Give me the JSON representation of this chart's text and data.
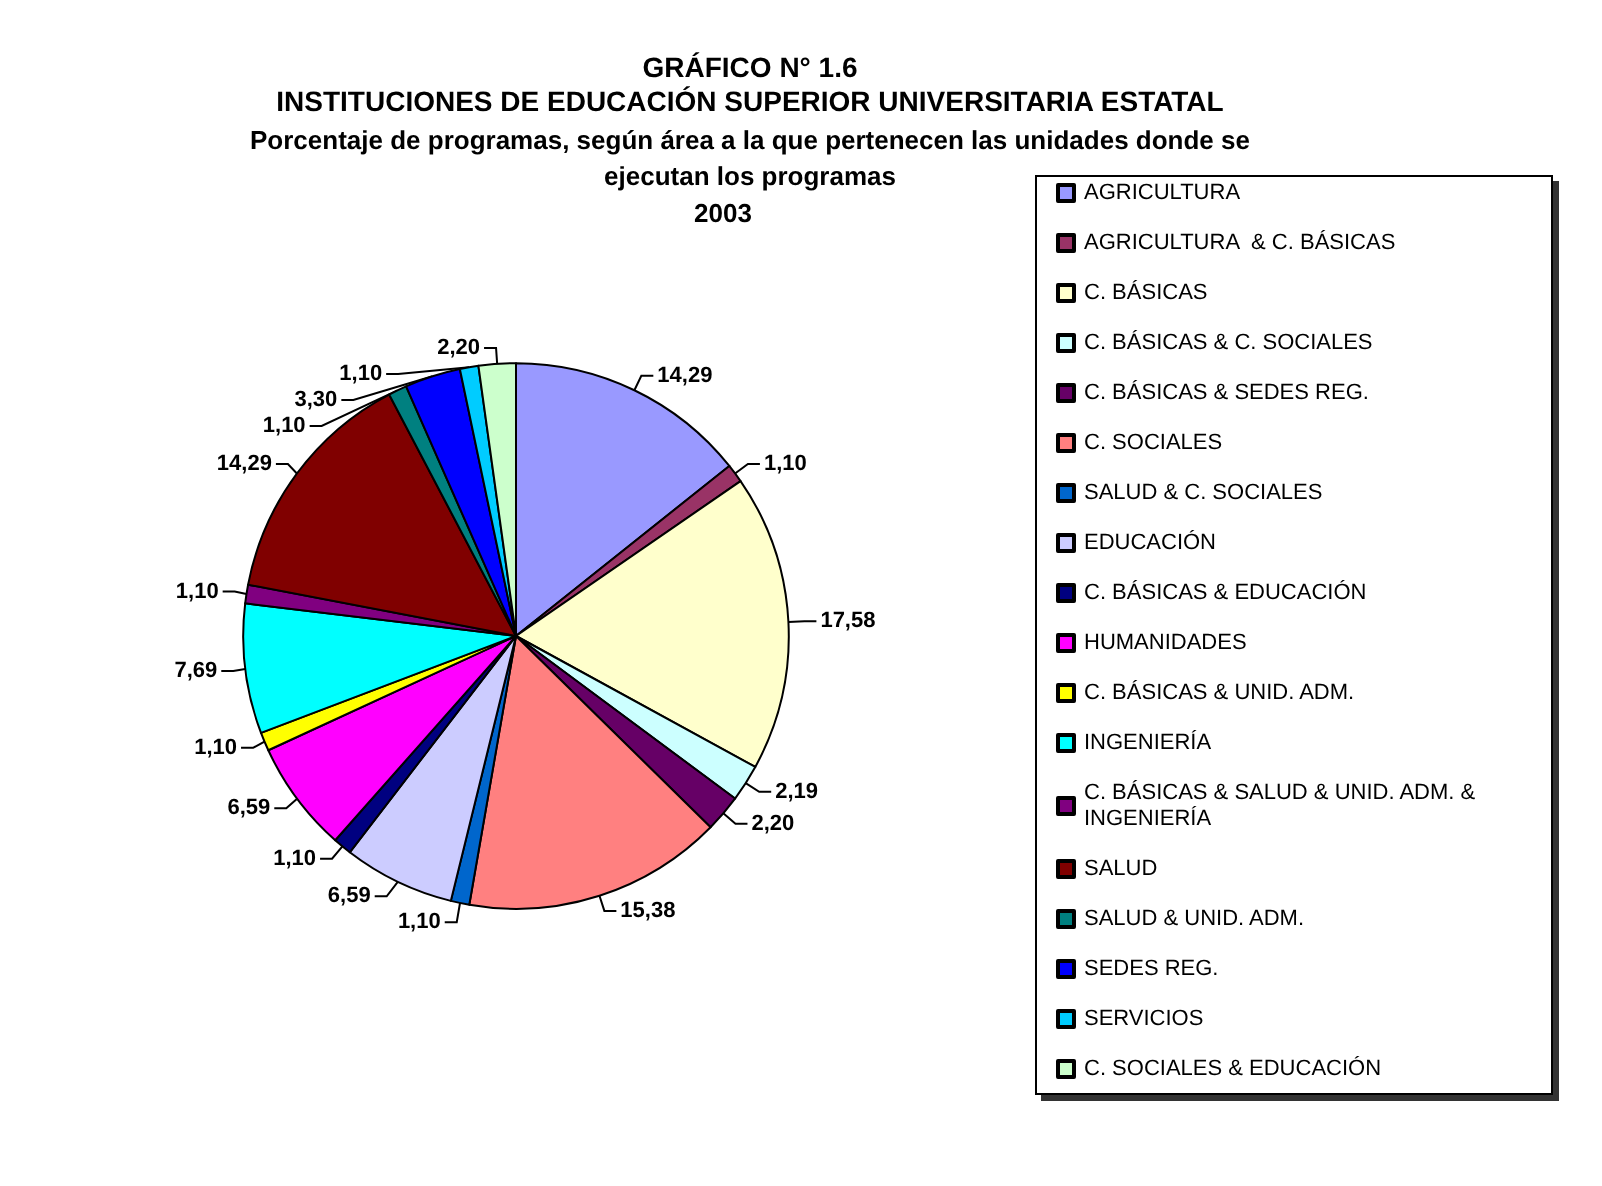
{
  "chart_data": {
    "type": "pie",
    "title": "GRÁFICO N° 1.6\nINSTITUCIONES DE EDUCACIÓN SUPERIOR UNIVERSITARIA ESTATAL",
    "subtitle": "Porcentaje de programas, según área a la que pertenecen las unidades donde se\nejecutan los programas",
    "annotations": [
      "2003"
    ],
    "categories": [
      "AGRICULTURA",
      "AGRICULTURA  & C. BÁSICAS",
      "C. BÁSICAS",
      "C. BÁSICAS & C. SOCIALES",
      "C. BÁSICAS & SEDES REG.",
      "C. SOCIALES",
      "SALUD & C. SOCIALES",
      "EDUCACIÓN",
      "C. BÁSICAS & EDUCACIÓN",
      "HUMANIDADES",
      "C. BÁSICAS & UNID. ADM.",
      "INGENIERÍA",
      "C. BÁSICAS & SALUD & UNID. ADM. & INGENIERÍA",
      "SALUD",
      "SALUD & UNID. ADM.",
      "SEDES REG.",
      "SERVICIOS",
      "C. SOCIALES & EDUCACIÓN"
    ],
    "values": [
      14.29,
      1.1,
      17.58,
      2.19,
      2.2,
      15.38,
      1.1,
      6.59,
      1.1,
      6.59,
      1.1,
      7.69,
      1.1,
      14.29,
      1.1,
      3.3,
      1.1,
      2.2
    ],
    "value_labels": [
      "14,29",
      "1,10",
      "17,58",
      "2,19",
      "2,20",
      "15,38",
      "1,10",
      "6,59",
      "1,10",
      "6,59",
      "1,10",
      "7,69",
      "1,10",
      "14,29",
      "1,10",
      "3,30",
      "1,10",
      "2,20"
    ],
    "colors": [
      "#9999ff",
      "#993366",
      "#ffffcc",
      "#ccffff",
      "#660066",
      "#ff8080",
      "#0066cc",
      "#ccccff",
      "#000080",
      "#ff00ff",
      "#ffff00",
      "#00ffff",
      "#800080",
      "#800000",
      "#008080",
      "#0000ff",
      "#00ccff",
      "#ccffcc"
    ],
    "legend": "right"
  }
}
